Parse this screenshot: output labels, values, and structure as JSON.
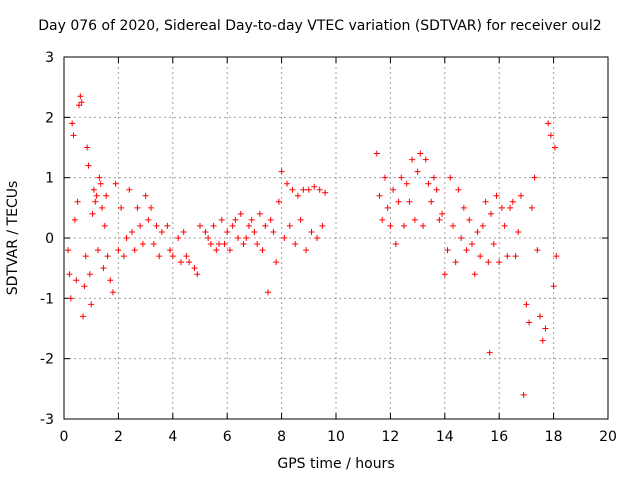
{
  "chart_data": {
    "type": "scatter",
    "title": "Day 076 of 2020, Sidereal Day-to-day VTEC variation (SDTVAR) for receiver oul2",
    "xlabel": "GPS time / hours",
    "ylabel": "SDTVAR / TECUs",
    "xlim": [
      0,
      20
    ],
    "ylim": [
      -3,
      3
    ],
    "xticks": [
      "0",
      "2",
      "4",
      "6",
      "8",
      "10",
      "12",
      "14",
      "16",
      "18",
      "20"
    ],
    "yticks": [
      "3",
      "2",
      "1",
      "0",
      "-1",
      "-2",
      "-3"
    ],
    "grid": true,
    "marker": "+",
    "series": [
      {
        "name": "SDTVAR",
        "color": "#ff0000",
        "points": [
          [
            0.15,
            -0.2
          ],
          [
            0.2,
            -0.6
          ],
          [
            0.25,
            -1.0
          ],
          [
            0.3,
            1.9
          ],
          [
            0.35,
            1.7
          ],
          [
            0.4,
            0.3
          ],
          [
            0.45,
            -0.7
          ],
          [
            0.5,
            0.6
          ],
          [
            0.55,
            2.2
          ],
          [
            0.6,
            2.35
          ],
          [
            0.65,
            2.25
          ],
          [
            0.7,
            -1.3
          ],
          [
            0.75,
            -0.8
          ],
          [
            0.8,
            -0.3
          ],
          [
            0.85,
            1.5
          ],
          [
            0.9,
            1.2
          ],
          [
            0.95,
            -0.6
          ],
          [
            1.0,
            -1.1
          ],
          [
            1.05,
            0.4
          ],
          [
            1.1,
            0.8
          ],
          [
            1.15,
            0.6
          ],
          [
            1.2,
            0.7
          ],
          [
            1.25,
            -0.2
          ],
          [
            1.3,
            1.0
          ],
          [
            1.35,
            0.9
          ],
          [
            1.4,
            0.5
          ],
          [
            1.45,
            -0.5
          ],
          [
            1.5,
            0.2
          ],
          [
            1.55,
            0.7
          ],
          [
            1.6,
            -0.3
          ],
          [
            1.7,
            -0.7
          ],
          [
            1.8,
            -0.9
          ],
          [
            1.9,
            0.9
          ],
          [
            2.0,
            -0.2
          ],
          [
            2.1,
            0.5
          ],
          [
            2.2,
            -0.3
          ],
          [
            2.3,
            0.0
          ],
          [
            2.4,
            0.8
          ],
          [
            2.5,
            0.1
          ],
          [
            2.6,
            -0.2
          ],
          [
            2.7,
            0.5
          ],
          [
            2.8,
            0.2
          ],
          [
            2.9,
            -0.1
          ],
          [
            3.0,
            0.7
          ],
          [
            3.1,
            0.3
          ],
          [
            3.2,
            0.5
          ],
          [
            3.3,
            -0.1
          ],
          [
            3.4,
            0.2
          ],
          [
            3.5,
            -0.3
          ],
          [
            3.6,
            0.1
          ],
          [
            3.8,
            0.2
          ],
          [
            3.9,
            -0.2
          ],
          [
            4.0,
            -0.3
          ],
          [
            4.2,
            0.0
          ],
          [
            4.3,
            -0.4
          ],
          [
            4.4,
            0.1
          ],
          [
            4.5,
            -0.3
          ],
          [
            4.6,
            -0.4
          ],
          [
            4.8,
            -0.5
          ],
          [
            4.9,
            -0.6
          ],
          [
            5.0,
            0.2
          ],
          [
            5.2,
            0.1
          ],
          [
            5.3,
            0.0
          ],
          [
            5.4,
            -0.1
          ],
          [
            5.5,
            0.2
          ],
          [
            5.6,
            -0.2
          ],
          [
            5.7,
            -0.1
          ],
          [
            5.8,
            0.3
          ],
          [
            5.9,
            -0.1
          ],
          [
            6.0,
            0.1
          ],
          [
            6.1,
            -0.2
          ],
          [
            6.2,
            0.2
          ],
          [
            6.3,
            0.3
          ],
          [
            6.4,
            0.0
          ],
          [
            6.5,
            0.4
          ],
          [
            6.6,
            -0.1
          ],
          [
            6.7,
            0.0
          ],
          [
            6.8,
            0.2
          ],
          [
            6.9,
            0.3
          ],
          [
            7.0,
            0.1
          ],
          [
            7.1,
            -0.1
          ],
          [
            7.2,
            0.4
          ],
          [
            7.3,
            -0.2
          ],
          [
            7.4,
            0.2
          ],
          [
            7.5,
            -0.9
          ],
          [
            7.6,
            0.3
          ],
          [
            7.7,
            0.1
          ],
          [
            7.8,
            -0.4
          ],
          [
            7.9,
            0.6
          ],
          [
            8.0,
            1.1
          ],
          [
            8.1,
            0.0
          ],
          [
            8.2,
            0.9
          ],
          [
            8.3,
            0.2
          ],
          [
            8.4,
            0.8
          ],
          [
            8.5,
            -0.1
          ],
          [
            8.6,
            0.7
          ],
          [
            8.7,
            0.3
          ],
          [
            8.8,
            0.8
          ],
          [
            8.9,
            -0.2
          ],
          [
            9.0,
            0.8
          ],
          [
            9.1,
            0.1
          ],
          [
            9.2,
            0.85
          ],
          [
            9.3,
            0.0
          ],
          [
            9.4,
            0.8
          ],
          [
            9.5,
            0.2
          ],
          [
            9.6,
            0.75
          ],
          [
            11.5,
            1.4
          ],
          [
            11.6,
            0.7
          ],
          [
            11.7,
            0.3
          ],
          [
            11.8,
            1.0
          ],
          [
            11.9,
            0.5
          ],
          [
            12.0,
            0.2
          ],
          [
            12.1,
            0.8
          ],
          [
            12.2,
            -0.1
          ],
          [
            12.3,
            0.6
          ],
          [
            12.4,
            1.0
          ],
          [
            12.5,
            0.2
          ],
          [
            12.6,
            0.9
          ],
          [
            12.7,
            0.6
          ],
          [
            12.8,
            1.3
          ],
          [
            12.9,
            0.3
          ],
          [
            13.0,
            1.1
          ],
          [
            13.1,
            1.4
          ],
          [
            13.2,
            0.2
          ],
          [
            13.3,
            1.3
          ],
          [
            13.4,
            0.9
          ],
          [
            13.5,
            0.6
          ],
          [
            13.6,
            1.0
          ],
          [
            13.7,
            0.8
          ],
          [
            13.8,
            0.3
          ],
          [
            13.9,
            0.4
          ],
          [
            14.0,
            -0.6
          ],
          [
            14.1,
            -0.2
          ],
          [
            14.2,
            1.0
          ],
          [
            14.3,
            0.2
          ],
          [
            14.4,
            -0.4
          ],
          [
            14.5,
            0.8
          ],
          [
            14.6,
            0.0
          ],
          [
            14.7,
            0.5
          ],
          [
            14.8,
            -0.2
          ],
          [
            14.9,
            0.3
          ],
          [
            15.0,
            -0.1
          ],
          [
            15.1,
            -0.6
          ],
          [
            15.2,
            0.1
          ],
          [
            15.3,
            -0.3
          ],
          [
            15.4,
            0.2
          ],
          [
            15.5,
            0.6
          ],
          [
            15.6,
            -0.4
          ],
          [
            15.65,
            -1.9
          ],
          [
            15.7,
            0.4
          ],
          [
            15.8,
            -0.1
          ],
          [
            15.9,
            0.7
          ],
          [
            16.0,
            -0.4
          ],
          [
            16.1,
            0.5
          ],
          [
            16.2,
            0.2
          ],
          [
            16.3,
            -0.3
          ],
          [
            16.4,
            0.5
          ],
          [
            16.5,
            0.6
          ],
          [
            16.6,
            -0.3
          ],
          [
            16.7,
            0.1
          ],
          [
            16.8,
            0.7
          ],
          [
            16.9,
            -2.6
          ],
          [
            17.0,
            -1.1
          ],
          [
            17.1,
            -1.4
          ],
          [
            17.2,
            0.5
          ],
          [
            17.3,
            1.0
          ],
          [
            17.4,
            -0.2
          ],
          [
            17.5,
            -1.3
          ],
          [
            17.6,
            -1.7
          ],
          [
            17.7,
            -1.5
          ],
          [
            17.8,
            1.9
          ],
          [
            17.9,
            1.7
          ],
          [
            18.0,
            -0.8
          ],
          [
            18.05,
            1.5
          ],
          [
            18.1,
            -0.3
          ]
        ]
      }
    ]
  }
}
